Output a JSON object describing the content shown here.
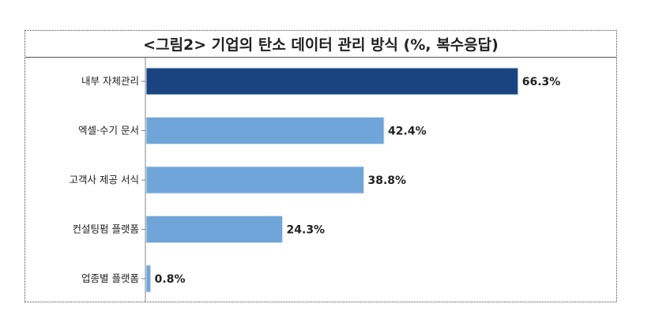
{
  "chart_data": {
    "type": "bar",
    "orientation": "horizontal",
    "title": "<그림2> 기업의 탄소 데이터 관리 방식 (%, 복수응답)",
    "categories": [
      "내부 자체관리",
      "엑셀·수기 문서",
      "고객사 제공 서식",
      "컨설팅펌 플랫폼",
      "업종별 플랫폼"
    ],
    "values": [
      66.3,
      42.4,
      38.8,
      24.3,
      0.8
    ],
    "value_labels": [
      "66.3%",
      "42.4%",
      "38.8%",
      "24.3%",
      "0.8%"
    ],
    "colors": {
      "highlight": "#1a4480",
      "default": "#6fa5d9"
    },
    "highlight_index": 0,
    "grid": false,
    "legend": "none"
  }
}
